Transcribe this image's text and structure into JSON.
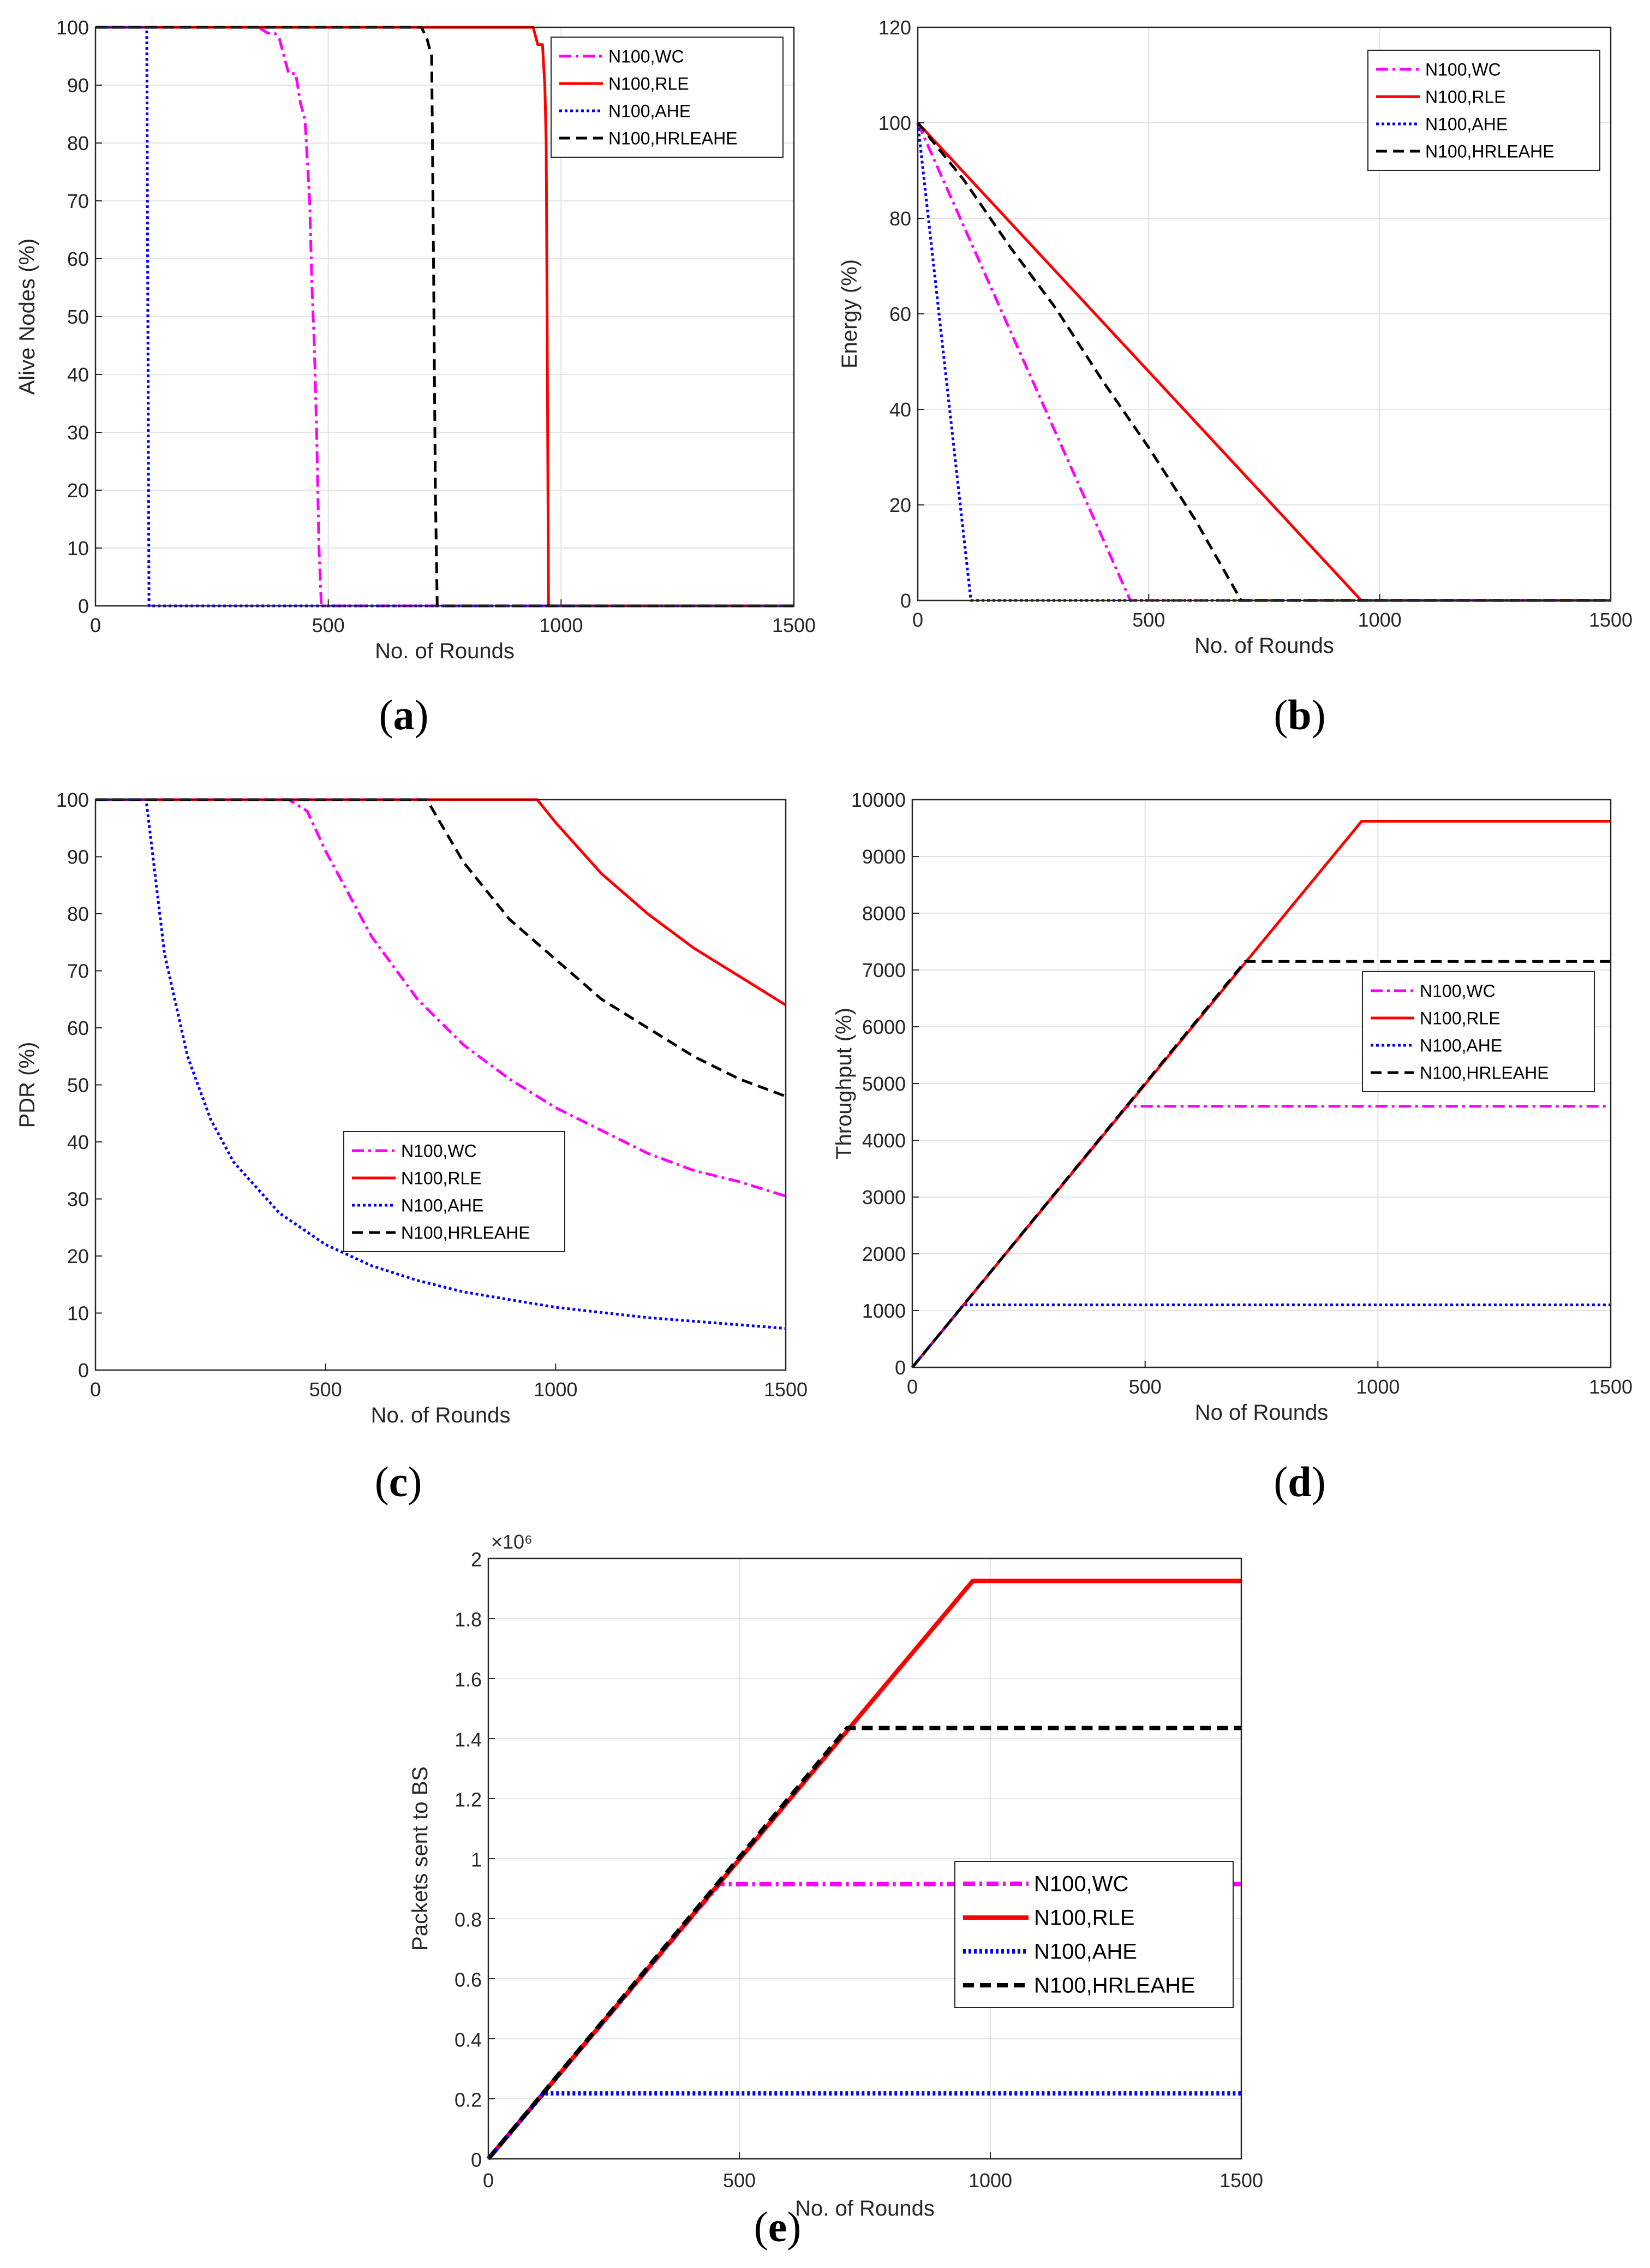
{
  "legend_labels": [
    "N100,WC",
    "N100,RLE",
    "N100,AHE",
    "N100,HRLEAHE"
  ],
  "colors": {
    "WC": "#ff00ff",
    "RLE": "#ff0000",
    "AHE": "#0000ff",
    "HRLEAHE": "#000000"
  },
  "chart_data": [
    {
      "id": "a",
      "type": "line",
      "caption": "a",
      "xlabel": "No. of Rounds",
      "ylabel": "Alive Nodes (%)",
      "xlim": [
        0,
        1500
      ],
      "ylim": [
        0,
        100
      ],
      "xticks": [
        0,
        500,
        1000,
        1500
      ],
      "yticks": [
        0,
        10,
        20,
        30,
        40,
        50,
        60,
        70,
        80,
        90,
        100
      ],
      "grid": true,
      "legend_position": "top-right",
      "series": [
        {
          "name": "N100,WC",
          "x": [
            0,
            350,
            370,
            385,
            395,
            405,
            415,
            430,
            440,
            450,
            460,
            465,
            470,
            475,
            480,
            485,
            1500
          ],
          "y": [
            100,
            100,
            99,
            99,
            98,
            95,
            92,
            92,
            87,
            84,
            70,
            55,
            45,
            30,
            10,
            0,
            0
          ]
        },
        {
          "name": "N100,RLE",
          "x": [
            0,
            940,
            950,
            960,
            965,
            968,
            970,
            973,
            1500
          ],
          "y": [
            100,
            100,
            97,
            97,
            90,
            80,
            50,
            0,
            0
          ]
        },
        {
          "name": "N100,AHE",
          "x": [
            0,
            110,
            115,
            1500
          ],
          "y": [
            100,
            100,
            0,
            0
          ]
        },
        {
          "name": "N100,HRLEAHE",
          "x": [
            0,
            700,
            712,
            722,
            726,
            730,
            734,
            1500
          ],
          "y": [
            100,
            100,
            98,
            95,
            60,
            20,
            0,
            0
          ]
        }
      ]
    },
    {
      "id": "b",
      "type": "line",
      "caption": "b",
      "xlabel": "No. of Rounds",
      "ylabel": "Energy (%)",
      "xlim": [
        0,
        1500
      ],
      "ylim": [
        0,
        120
      ],
      "xticks": [
        0,
        500,
        1000,
        1500
      ],
      "yticks": [
        0,
        20,
        40,
        60,
        80,
        100,
        120
      ],
      "grid": true,
      "legend_position": "top-right",
      "series": [
        {
          "name": "N100,WC",
          "x": [
            0,
            460,
            1500
          ],
          "y": [
            100,
            0,
            0
          ]
        },
        {
          "name": "N100,RLE",
          "x": [
            0,
            960,
            1500
          ],
          "y": [
            100,
            0,
            0
          ]
        },
        {
          "name": "N100,AHE",
          "x": [
            0,
            115,
            1500
          ],
          "y": [
            100,
            0,
            0
          ]
        },
        {
          "name": "N100,HRLEAHE",
          "x": [
            0,
            100,
            200,
            300,
            400,
            500,
            600,
            700,
            1500
          ],
          "y": [
            100,
            88,
            74,
            61,
            46,
            32,
            17,
            0,
            0
          ]
        }
      ]
    },
    {
      "id": "c",
      "type": "line",
      "caption": "c",
      "xlabel": "No. of Rounds",
      "ylabel": "PDR (%)",
      "xlim": [
        0,
        1500
      ],
      "ylim": [
        0,
        100
      ],
      "xticks": [
        0,
        500,
        1000,
        1500
      ],
      "yticks": [
        0,
        10,
        20,
        30,
        40,
        50,
        60,
        70,
        80,
        90,
        100
      ],
      "grid": false,
      "legend_position": "middle",
      "series": [
        {
          "name": "N100,WC",
          "x": [
            0,
            420,
            460,
            500,
            600,
            700,
            800,
            900,
            1000,
            1100,
            1200,
            1300,
            1400,
            1500
          ],
          "y": [
            100,
            100,
            98,
            91,
            76,
            65,
            57,
            51,
            46,
            42,
            38,
            35,
            33,
            30.5
          ]
        },
        {
          "name": "N100,RLE",
          "x": [
            0,
            960,
            1000,
            1100,
            1200,
            1300,
            1400,
            1500
          ],
          "y": [
            100,
            100,
            96,
            87,
            80,
            74,
            69,
            64
          ]
        },
        {
          "name": "N100,AHE",
          "x": [
            0,
            110,
            150,
            200,
            250,
            300,
            400,
            500,
            600,
            700,
            800,
            1000,
            1200,
            1500
          ],
          "y": [
            100,
            100,
            73,
            55,
            44,
            36.5,
            27.5,
            22,
            18.3,
            15.7,
            13.7,
            11,
            9.2,
            7.3
          ]
        },
        {
          "name": "N100,HRLEAHE",
          "x": [
            0,
            720,
            800,
            900,
            1000,
            1100,
            1200,
            1300,
            1400,
            1500
          ],
          "y": [
            100,
            100,
            89,
            79,
            72,
            65,
            60,
            55,
            51,
            48
          ]
        }
      ]
    },
    {
      "id": "d",
      "type": "line",
      "caption": "d",
      "xlabel": "No of Rounds",
      "ylabel": "Throughput (%)",
      "xlim": [
        0,
        1500
      ],
      "ylim": [
        0,
        10000
      ],
      "xticks": [
        0,
        500,
        1000,
        1500
      ],
      "yticks": [
        0,
        1000,
        2000,
        3000,
        4000,
        5000,
        6000,
        7000,
        8000,
        9000,
        10000
      ],
      "grid": true,
      "legend_position": "middle-right",
      "series": [
        {
          "name": "N100,WC",
          "x": [
            0,
            460,
            1500
          ],
          "y": [
            0,
            4600,
            4600
          ]
        },
        {
          "name": "N100,RLE",
          "x": [
            0,
            965,
            1500
          ],
          "y": [
            0,
            9620,
            9620
          ]
        },
        {
          "name": "N100,AHE",
          "x": [
            0,
            110,
            1500
          ],
          "y": [
            0,
            1100,
            1100
          ]
        },
        {
          "name": "N100,HRLEAHE",
          "x": [
            0,
            715,
            1500
          ],
          "y": [
            0,
            7150,
            7150
          ]
        }
      ]
    },
    {
      "id": "e",
      "type": "line",
      "caption": "e",
      "xlabel": "No. of Rounds",
      "ylabel": "Packets sent to BS",
      "exponent_label": "×10⁶",
      "xlim": [
        0,
        1500
      ],
      "ylim": [
        0,
        2
      ],
      "xticks": [
        0,
        500,
        1000,
        1500
      ],
      "yticks": [
        0,
        0.2,
        0.4,
        0.6,
        0.8,
        1,
        1.2,
        1.4,
        1.6,
        1.8,
        2
      ],
      "grid": true,
      "legend_position": "middle-right",
      "series": [
        {
          "name": "N100,WC",
          "x": [
            0,
            460,
            1500
          ],
          "y": [
            0,
            0.915,
            0.915
          ]
        },
        {
          "name": "N100,RLE",
          "x": [
            0,
            965,
            1500
          ],
          "y": [
            0,
            1.925,
            1.925
          ]
        },
        {
          "name": "N100,AHE",
          "x": [
            0,
            110,
            1500
          ],
          "y": [
            0,
            0.218,
            0.218
          ]
        },
        {
          "name": "N100,HRLEAHE",
          "x": [
            0,
            715,
            1500
          ],
          "y": [
            0,
            1.435,
            1.435
          ]
        }
      ]
    }
  ]
}
